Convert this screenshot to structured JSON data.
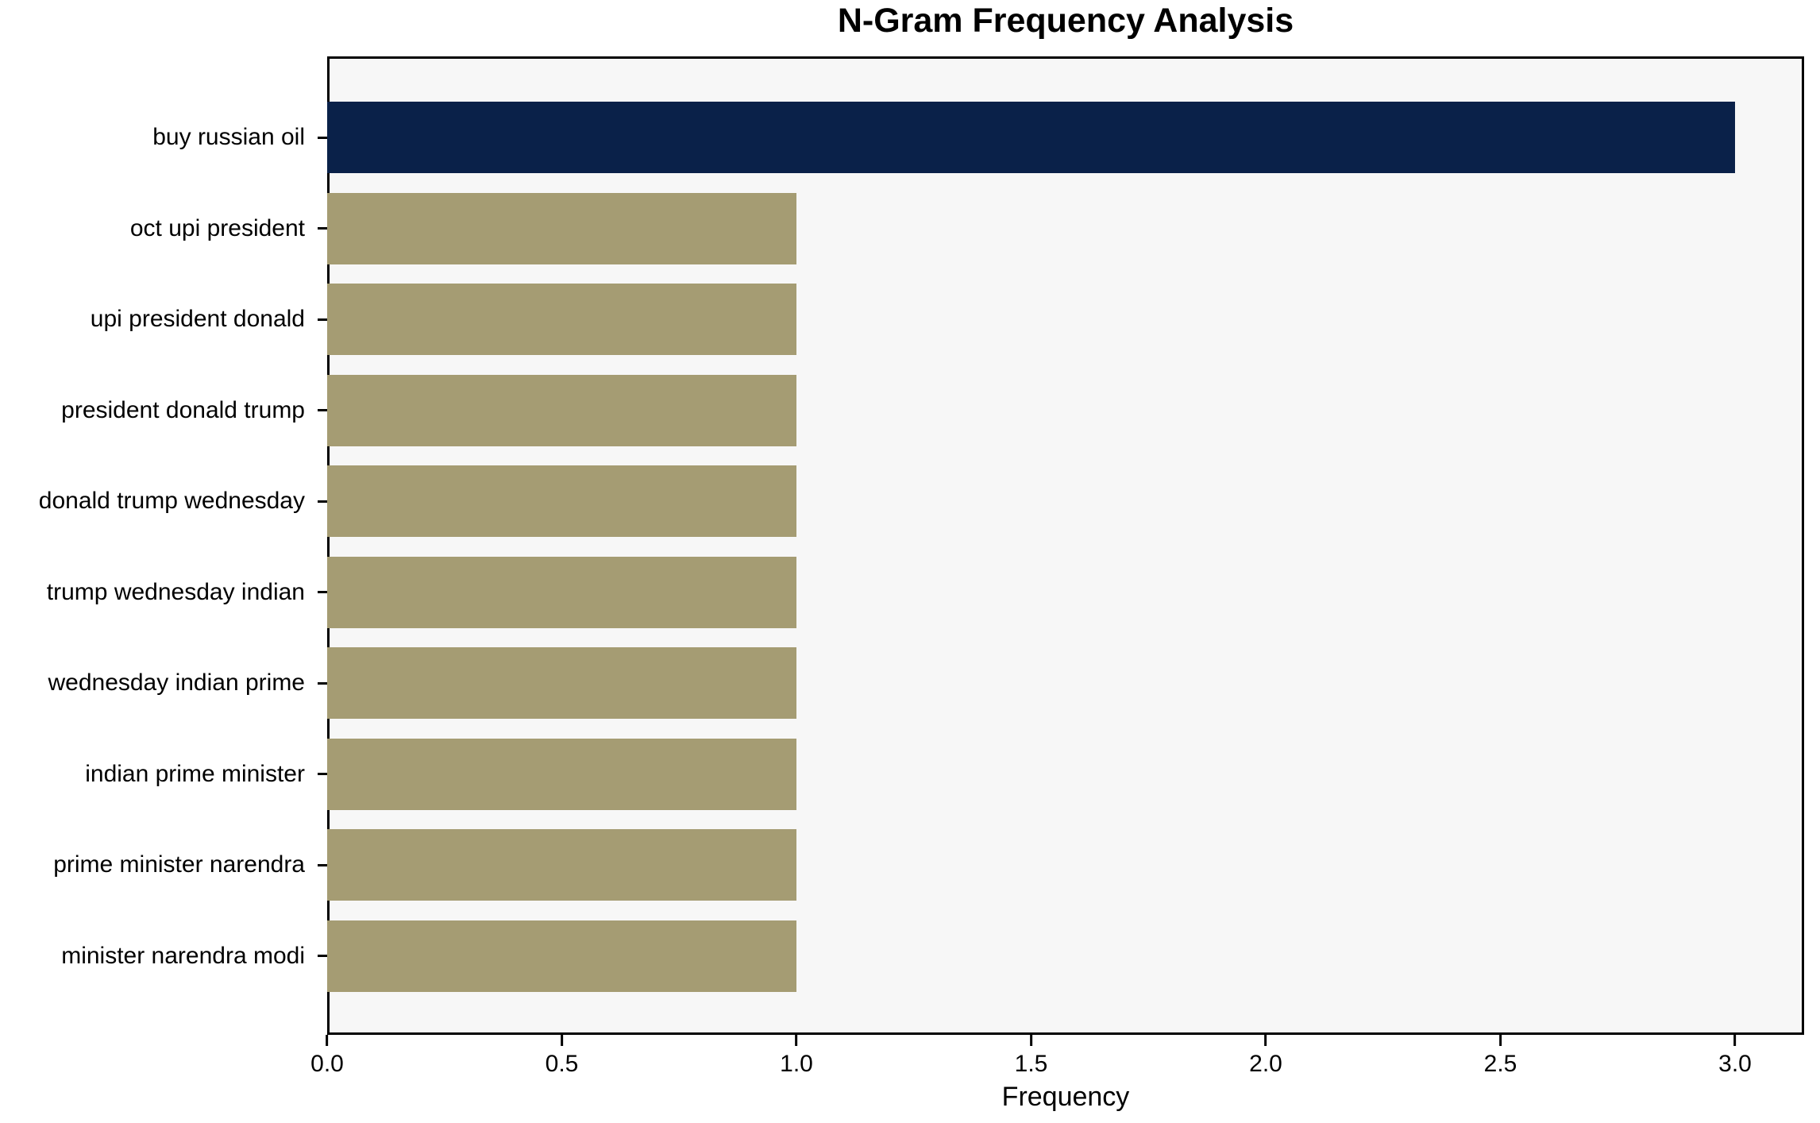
{
  "chart_data": {
    "type": "bar",
    "orientation": "horizontal",
    "title": "N-Gram Frequency Analysis",
    "xlabel": "Frequency",
    "ylabel": "",
    "categories": [
      "buy russian oil",
      "oct upi president",
      "upi president donald",
      "president donald trump",
      "donald trump wednesday",
      "trump wednesday indian",
      "wednesday indian prime",
      "indian prime minister",
      "prime minister narendra",
      "minister narendra modi"
    ],
    "values": [
      3,
      1,
      1,
      1,
      1,
      1,
      1,
      1,
      1,
      1
    ],
    "bar_colors": [
      "#0a2149",
      "#a59c73",
      "#a59c73",
      "#a59c73",
      "#a59c73",
      "#a59c73",
      "#a59c73",
      "#a59c73",
      "#a59c73",
      "#a59c73"
    ],
    "xticks": [
      0.0,
      0.5,
      1.0,
      1.5,
      2.0,
      2.5,
      3.0
    ],
    "xtick_labels": [
      "0.0",
      "0.5",
      "1.0",
      "1.5",
      "2.0",
      "2.5",
      "3.0"
    ],
    "xlim": [
      0,
      3.147
    ],
    "grid": false,
    "legend": false,
    "plot_background": "#f7f7f7",
    "figure_background": "#ffffff",
    "highlight_color": "#0a2149",
    "base_bar_color": "#a59c73"
  }
}
